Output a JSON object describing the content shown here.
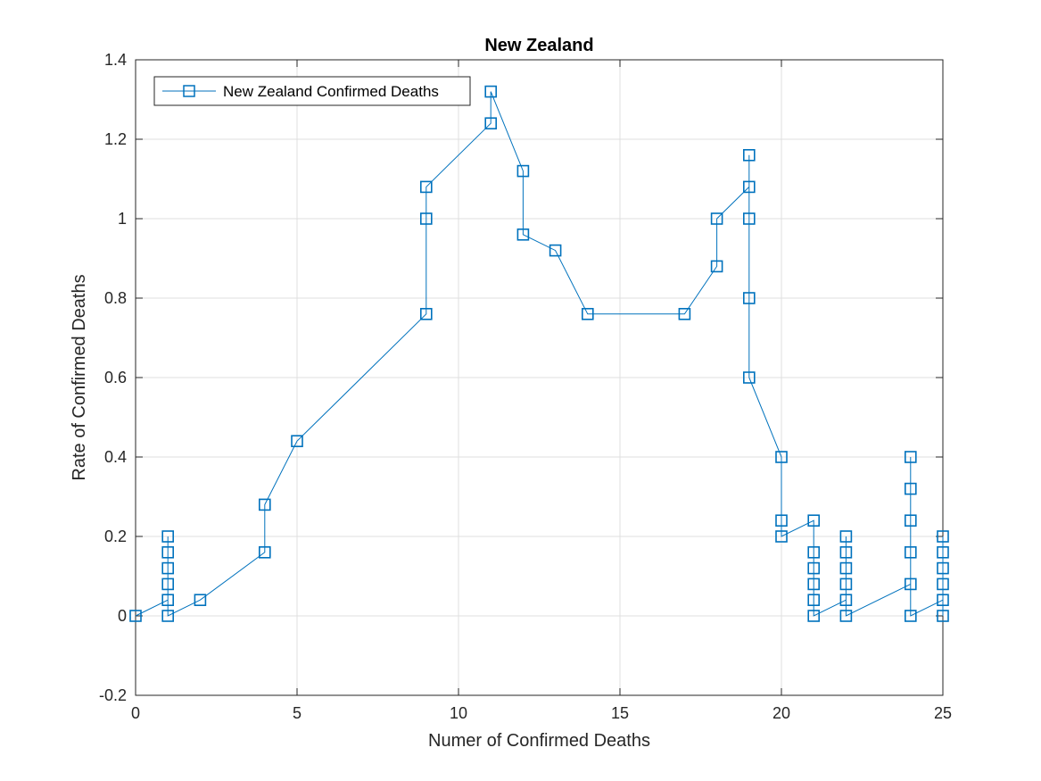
{
  "chart_data": {
    "type": "line",
    "title": "New Zealand",
    "xlabel": "Numer of Confirmed Deaths",
    "ylabel": "Rate of Confirmed Deaths",
    "xlim": [
      0,
      25
    ],
    "ylim": [
      -0.2,
      1.4
    ],
    "xticks": [
      "0",
      "5",
      "10",
      "15",
      "20",
      "25"
    ],
    "yticks": [
      "-0.2",
      "0",
      "0.2",
      "0.4",
      "0.6",
      "0.8",
      "1",
      "1.2",
      "1.4"
    ],
    "grid": true,
    "legend_position": "top-left",
    "series": [
      {
        "name": "New Zealand Confirmed Deaths",
        "color": "#0072bd",
        "marker": "square",
        "x": [
          0,
          1,
          1,
          1,
          1,
          1,
          1,
          2,
          4,
          4,
          5,
          9,
          9,
          9,
          11,
          11,
          12,
          12,
          13,
          14,
          17,
          18,
          18,
          19,
          19,
          19,
          19,
          19,
          20,
          20,
          20,
          21,
          21,
          21,
          21,
          21,
          21,
          22,
          22,
          22,
          22,
          22,
          22,
          24,
          24,
          24,
          24,
          24,
          24,
          25,
          25,
          25,
          25,
          25,
          25
        ],
        "y": [
          0,
          0.04,
          0.08,
          0.12,
          0.16,
          0.2,
          0,
          0.04,
          0.16,
          0.28,
          0.44,
          0.76,
          1.0,
          1.08,
          1.24,
          1.32,
          1.12,
          0.96,
          0.92,
          0.76,
          0.76,
          0.88,
          1.0,
          1.08,
          1.16,
          1.0,
          0.8,
          0.6,
          0.4,
          0.24,
          0.2,
          0.24,
          0.16,
          0.12,
          0.08,
          0.04,
          0,
          0.04,
          0.08,
          0.12,
          0.16,
          0.2,
          0,
          0.08,
          0.16,
          0.24,
          0.32,
          0.4,
          0,
          0.04,
          0.08,
          0.12,
          0.16,
          0.2,
          0
        ]
      }
    ]
  }
}
